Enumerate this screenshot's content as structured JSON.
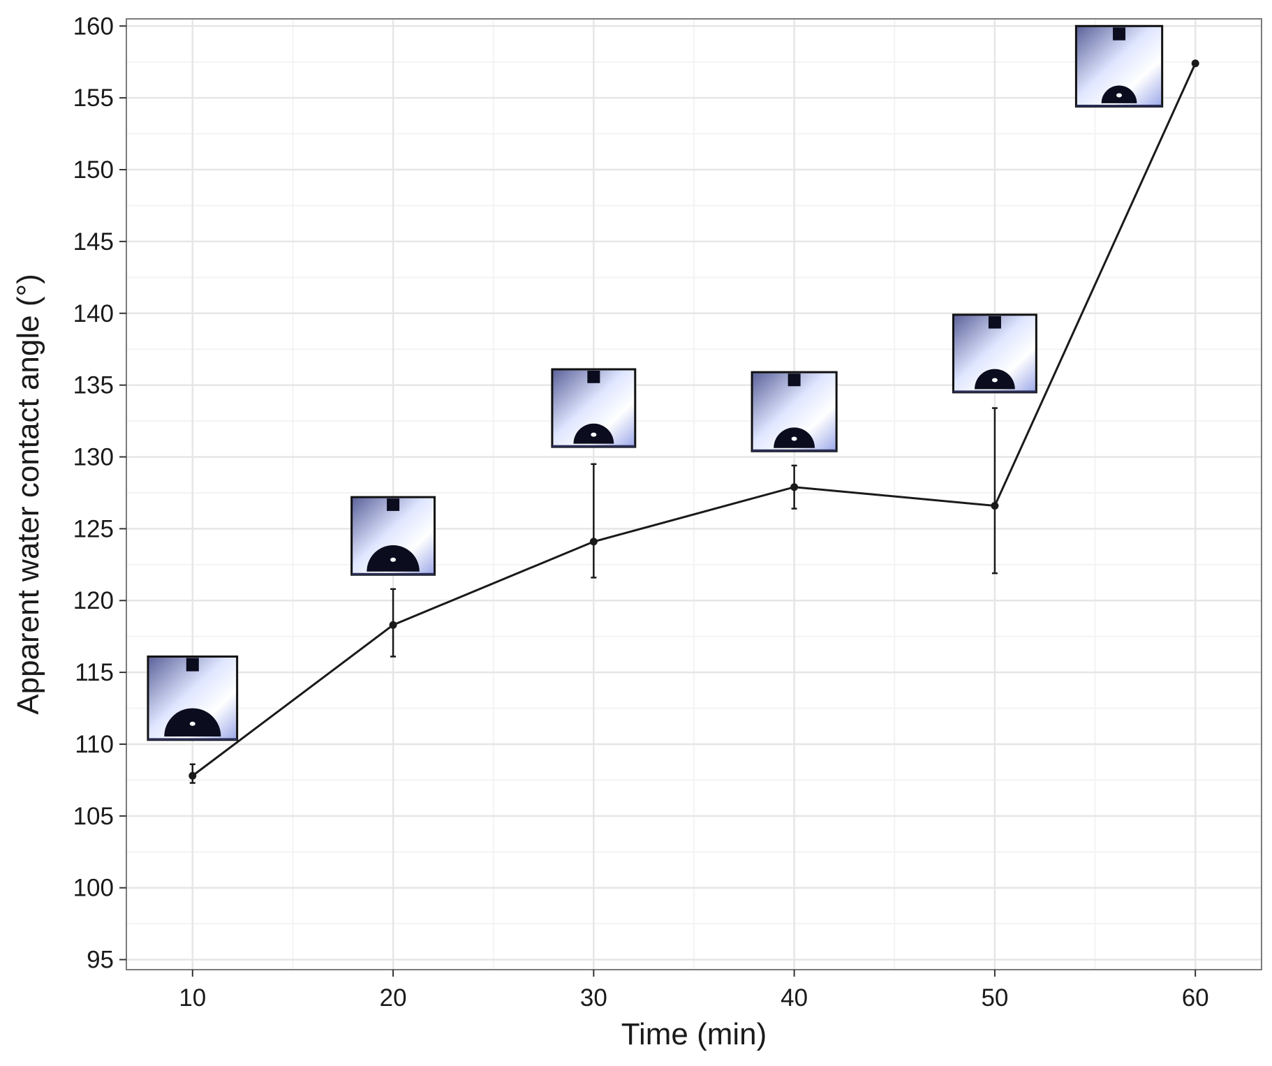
{
  "chart_data": {
    "type": "line",
    "title": "",
    "xlabel": "Time (min)",
    "ylabel": "Apparent water contact angle (°)",
    "xlim": [
      6.7,
      63.3
    ],
    "ylim": [
      94.3,
      160.5
    ],
    "x_ticks": [
      "10",
      "20",
      "30",
      "40",
      "50",
      "60"
    ],
    "y_ticks": [
      "95",
      "100",
      "105",
      "110",
      "115",
      "120",
      "125",
      "130",
      "135",
      "140",
      "145",
      "150",
      "155",
      "160"
    ],
    "grid": true,
    "legend": "none",
    "colors": {
      "line": "#1a1a1a",
      "grid_major": "#e6e6e6",
      "grid_minor": "#f3f3f3",
      "panel_border": "#7a7a7a",
      "inset_background": "#9aa6e8",
      "droplet": "#0b0d1f"
    },
    "series": [
      {
        "x": [
          10,
          20,
          30,
          40,
          50,
          60
        ],
        "y": [
          107.8,
          118.3,
          124.1,
          127.9,
          126.6,
          157.4
        ],
        "error_low": [
          107.3,
          116.1,
          121.6,
          126.4,
          121.9,
          157.4
        ],
        "error_high": [
          108.6,
          120.8,
          129.5,
          129.4,
          133.4,
          157.4
        ]
      }
    ],
    "annotations": [
      {
        "type": "droplet-image",
        "x": 10,
        "y_top": 116.1,
        "y_bottom": 110.3,
        "drop_size": "large"
      },
      {
        "type": "droplet-image",
        "x": 20,
        "y_top": 127.2,
        "y_bottom": 121.8,
        "drop_size": "large"
      },
      {
        "type": "droplet-image",
        "x": 30,
        "y_top": 136.1,
        "y_bottom": 130.7,
        "drop_size": "medium"
      },
      {
        "type": "droplet-image",
        "x": 40,
        "y_top": 135.9,
        "y_bottom": 130.4,
        "drop_size": "medium"
      },
      {
        "type": "droplet-image",
        "x": 50,
        "y_top": 139.9,
        "y_bottom": 134.5,
        "drop_size": "medium"
      },
      {
        "type": "droplet-image",
        "x": 56.2,
        "y_top": 160.0,
        "y_bottom": 154.4,
        "drop_size": "small"
      }
    ]
  }
}
